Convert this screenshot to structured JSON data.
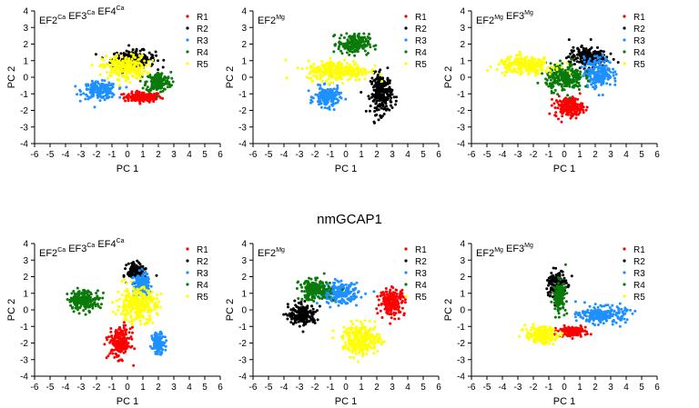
{
  "figure_title": "nmGCAP1",
  "chart_data": [
    {
      "type": "scatter",
      "panel_label": {
        "parts": [
          [
            "EF2",
            "Ca"
          ],
          [
            "EF3",
            "Ca"
          ],
          [
            "EF4",
            "Ca"
          ]
        ]
      },
      "xlabel": "PC 1",
      "ylabel": "PC 2",
      "xlim": [
        -6,
        6
      ],
      "ylim": [
        -4,
        4
      ],
      "xticks": [
        -6,
        -5,
        -4,
        -3,
        -2,
        -1,
        0,
        1,
        2,
        3,
        4,
        5,
        6
      ],
      "yticks": [
        -4,
        -3,
        -2,
        -1,
        0,
        1,
        2,
        3,
        4
      ],
      "legend_position": "top-right",
      "series": [
        {
          "name": "R1",
          "color": "#ff0000",
          "clusters": [
            {
              "cx": 1.0,
              "cy": -1.2,
              "sx": 1.2,
              "sy": 0.3
            }
          ]
        },
        {
          "name": "R2",
          "color": "#000000",
          "clusters": [
            {
              "cx": 0.4,
              "cy": 1.1,
              "sx": 1.4,
              "sy": 0.5
            }
          ]
        },
        {
          "name": "R3",
          "color": "#1e90ff",
          "clusters": [
            {
              "cx": -1.8,
              "cy": -0.8,
              "sx": 1.1,
              "sy": 0.5
            }
          ]
        },
        {
          "name": "R4",
          "color": "#0a7a0a",
          "clusters": [
            {
              "cx": 2.0,
              "cy": -0.3,
              "sx": 0.8,
              "sy": 0.6
            }
          ]
        },
        {
          "name": "R5",
          "color": "#ffff00",
          "clusters": [
            {
              "cx": -0.2,
              "cy": 0.6,
              "sx": 1.4,
              "sy": 0.7
            }
          ]
        }
      ]
    },
    {
      "type": "scatter",
      "panel_label": {
        "parts": [
          [
            "EF2",
            "Mg"
          ]
        ]
      },
      "xlabel": "PC 1",
      "ylabel": "PC 2",
      "xlim": [
        -6,
        6
      ],
      "ylim": [
        -4,
        4
      ],
      "xticks": [
        -6,
        -5,
        -4,
        -3,
        -2,
        -1,
        0,
        1,
        2,
        3,
        4,
        5,
        6
      ],
      "yticks": [
        -4,
        -3,
        -2,
        -1,
        0,
        1,
        2,
        3,
        4
      ],
      "legend_position": "top-right",
      "series": [
        {
          "name": "R1",
          "color": "#ff0000",
          "clusters": []
        },
        {
          "name": "R2",
          "color": "#000000",
          "clusters": [
            {
              "cx": 2.3,
              "cy": -1.0,
              "sx": 0.7,
              "sy": 1.2
            }
          ]
        },
        {
          "name": "R3",
          "color": "#1e90ff",
          "clusters": [
            {
              "cx": -1.2,
              "cy": -1.2,
              "sx": 0.8,
              "sy": 0.6
            }
          ]
        },
        {
          "name": "R4",
          "color": "#0a7a0a",
          "clusters": [
            {
              "cx": 0.5,
              "cy": 2.0,
              "sx": 1.0,
              "sy": 0.6
            }
          ]
        },
        {
          "name": "R5",
          "color": "#ffff00",
          "clusters": [
            {
              "cx": -0.5,
              "cy": 0.4,
              "sx": 2.0,
              "sy": 0.6
            }
          ]
        }
      ]
    },
    {
      "type": "scatter",
      "panel_label": {
        "parts": [
          [
            "EF2",
            "Mg"
          ],
          [
            "EF3",
            "Mg"
          ]
        ]
      },
      "xlabel": "PC 1",
      "ylabel": "PC 2",
      "xlim": [
        -6,
        6
      ],
      "ylim": [
        -4,
        4
      ],
      "xticks": [
        -6,
        -5,
        -4,
        -3,
        -2,
        -1,
        0,
        1,
        2,
        3,
        4,
        5,
        6
      ],
      "yticks": [
        -4,
        -3,
        -2,
        -1,
        0,
        1,
        2,
        3,
        4
      ],
      "legend_position": "top-right",
      "series": [
        {
          "name": "R1",
          "color": "#ff0000",
          "clusters": [
            {
              "cx": 0.3,
              "cy": -1.8,
              "sx": 0.9,
              "sy": 0.6
            }
          ]
        },
        {
          "name": "R2",
          "color": "#000000",
          "clusters": [
            {
              "cx": 1.5,
              "cy": 1.2,
              "sx": 1.2,
              "sy": 0.6
            }
          ]
        },
        {
          "name": "R3",
          "color": "#1e90ff",
          "clusters": [
            {
              "cx": 2.2,
              "cy": 0.3,
              "sx": 0.9,
              "sy": 0.9
            }
          ]
        },
        {
          "name": "R4",
          "color": "#0a7a0a",
          "clusters": [
            {
              "cx": 0.0,
              "cy": 0.0,
              "sx": 1.2,
              "sy": 0.8
            }
          ]
        },
        {
          "name": "R5",
          "color": "#ffff00",
          "clusters": [
            {
              "cx": -2.5,
              "cy": 0.7,
              "sx": 1.8,
              "sy": 0.5
            }
          ]
        }
      ]
    },
    {
      "type": "scatter",
      "panel_label": {
        "parts": [
          [
            "EF2",
            "Ca"
          ],
          [
            "EF3",
            "Ca"
          ],
          [
            "EF4",
            "Ca"
          ]
        ]
      },
      "xlabel": "PC 1",
      "ylabel": "PC 2",
      "xlim": [
        -6,
        6
      ],
      "ylim": [
        -4,
        4
      ],
      "xticks": [
        -6,
        -5,
        -4,
        -3,
        -2,
        -1,
        0,
        1,
        2,
        3,
        4,
        5,
        6
      ],
      "yticks": [
        -4,
        -3,
        -2,
        -1,
        0,
        1,
        2,
        3,
        4
      ],
      "legend_position": "top-right",
      "series": [
        {
          "name": "R1",
          "color": "#ff0000",
          "clusters": [
            {
              "cx": -0.5,
              "cy": -2.0,
              "sx": 0.7,
              "sy": 0.9
            }
          ]
        },
        {
          "name": "R2",
          "color": "#000000",
          "clusters": [
            {
              "cx": 0.6,
              "cy": 2.3,
              "sx": 0.6,
              "sy": 0.5
            }
          ]
        },
        {
          "name": "R3",
          "color": "#1e90ff",
          "clusters": [
            {
              "cx": 0.9,
              "cy": 1.5,
              "sx": 0.5,
              "sy": 0.7
            },
            {
              "cx": 2.0,
              "cy": -2.0,
              "sx": 0.4,
              "sy": 0.6
            }
          ]
        },
        {
          "name": "R4",
          "color": "#0a7a0a",
          "clusters": [
            {
              "cx": -2.8,
              "cy": 0.6,
              "sx": 1.0,
              "sy": 0.6
            }
          ]
        },
        {
          "name": "R5",
          "color": "#ffff00",
          "clusters": [
            {
              "cx": 0.6,
              "cy": 0.3,
              "sx": 1.3,
              "sy": 1.0
            }
          ]
        }
      ]
    },
    {
      "type": "scatter",
      "panel_label": {
        "parts": [
          [
            "EF2",
            "Mg"
          ]
        ]
      },
      "xlabel": "PC 1",
      "ylabel": "PC 2",
      "xlim": [
        -6,
        6
      ],
      "ylim": [
        -4,
        4
      ],
      "xticks": [
        -6,
        -5,
        -4,
        -3,
        -2,
        -1,
        0,
        1,
        2,
        3,
        4,
        5,
        6
      ],
      "yticks": [
        -4,
        -3,
        -2,
        -1,
        0,
        1,
        2,
        3,
        4
      ],
      "legend_position": "top-right",
      "series": [
        {
          "name": "R1",
          "color": "#ff0000",
          "clusters": [
            {
              "cx": 3.0,
              "cy": 0.5,
              "sx": 0.8,
              "sy": 0.8
            }
          ]
        },
        {
          "name": "R2",
          "color": "#000000",
          "clusters": [
            {
              "cx": -2.8,
              "cy": -0.3,
              "sx": 0.9,
              "sy": 0.6
            }
          ]
        },
        {
          "name": "R3",
          "color": "#1e90ff",
          "clusters": [
            {
              "cx": -0.5,
              "cy": 1.0,
              "sx": 1.3,
              "sy": 0.6
            }
          ]
        },
        {
          "name": "R4",
          "color": "#0a7a0a",
          "clusters": [
            {
              "cx": -2.0,
              "cy": 1.2,
              "sx": 1.0,
              "sy": 0.6
            }
          ]
        },
        {
          "name": "R5",
          "color": "#ffff00",
          "clusters": [
            {
              "cx": 1.0,
              "cy": -1.8,
              "sx": 1.2,
              "sy": 0.9
            }
          ]
        }
      ]
    },
    {
      "type": "scatter",
      "panel_label": {
        "parts": [
          [
            "EF2",
            "Mg"
          ],
          [
            "EF3",
            "Mg"
          ]
        ]
      },
      "xlabel": "PC 1",
      "ylabel": "PC 2",
      "xlim": [
        -6,
        6
      ],
      "ylim": [
        -4,
        4
      ],
      "xticks": [
        -6,
        -5,
        -4,
        -3,
        -2,
        -1,
        0,
        1,
        2,
        3,
        4,
        5,
        6
      ],
      "yticks": [
        -4,
        -3,
        -2,
        -1,
        0,
        1,
        2,
        3,
        4
      ],
      "legend_position": "top-right",
      "series": [
        {
          "name": "R1",
          "color": "#ff0000",
          "clusters": [
            {
              "cx": 0.5,
              "cy": -1.3,
              "sx": 0.9,
              "sy": 0.3
            }
          ]
        },
        {
          "name": "R2",
          "color": "#000000",
          "clusters": [
            {
              "cx": -0.5,
              "cy": 1.5,
              "sx": 0.6,
              "sy": 0.9
            }
          ]
        },
        {
          "name": "R3",
          "color": "#1e90ff",
          "clusters": [
            {
              "cx": 2.5,
              "cy": -0.3,
              "sx": 1.5,
              "sy": 0.5
            }
          ]
        },
        {
          "name": "R4",
          "color": "#0a7a0a",
          "clusters": [
            {
              "cx": -0.3,
              "cy": 0.8,
              "sx": 0.4,
              "sy": 0.9
            }
          ]
        },
        {
          "name": "R5",
          "color": "#ffff00",
          "clusters": [
            {
              "cx": -1.5,
              "cy": -1.5,
              "sx": 1.0,
              "sy": 0.5
            }
          ]
        }
      ]
    }
  ]
}
